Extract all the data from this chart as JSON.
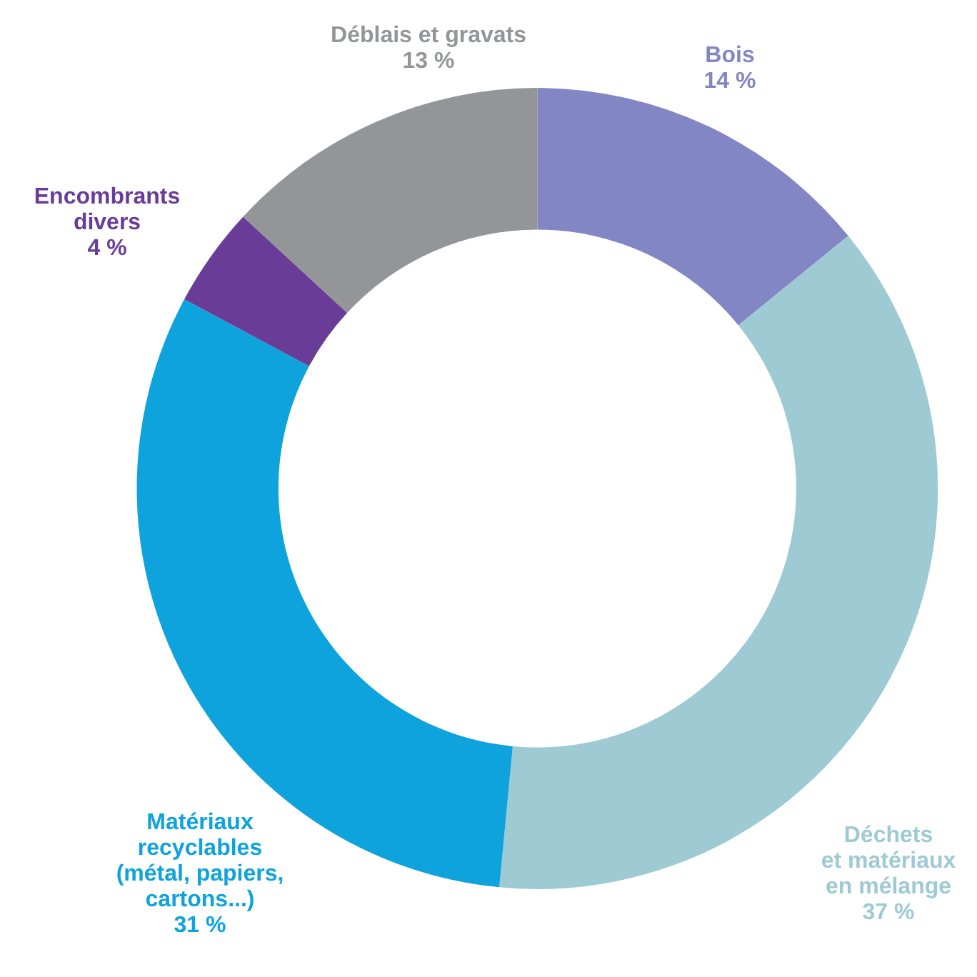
{
  "chart_data": {
    "type": "donut",
    "categories": [
      "Bois",
      "Déchets\net matériaux\nen mélange",
      "Matériaux\nrecyclables\n(métal, papiers,\ncartons...)",
      "Encombrants\ndivers",
      "Déblais et gravats"
    ],
    "values": [
      14,
      37,
      31,
      4,
      13
    ],
    "value_labels": [
      "14 %",
      "37 %",
      "31 %",
      "4 %",
      "13 %"
    ],
    "colors": [
      "#8286c4",
      "#9dcad3",
      "#0ea3dc",
      "#693c98",
      "#939598"
    ],
    "legend": false
  }
}
